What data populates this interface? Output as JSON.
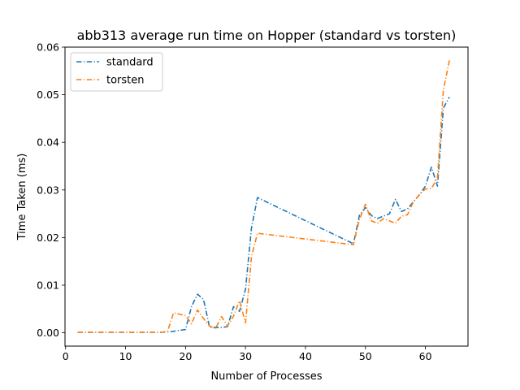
{
  "chart_data": {
    "type": "line",
    "title": "abb313 average run time on Hopper (standard vs torsten)",
    "xlabel": "Number of Processes",
    "ylabel": "Time Taken (ms)",
    "xlim": [
      -0.1,
      67.1
    ],
    "ylim": [
      -0.0028,
      0.06
    ],
    "xticks": [
      0,
      10,
      20,
      30,
      40,
      50,
      60
    ],
    "yticks": [
      0.0,
      0.01,
      0.02,
      0.03,
      0.04,
      0.05,
      0.06
    ],
    "ytick_labels": [
      "0.00",
      "0.01",
      "0.02",
      "0.03",
      "0.04",
      "0.05",
      "0.06"
    ],
    "grid": false,
    "legend_position": "upper-left",
    "series": [
      {
        "name": "standard",
        "color": "#1f77b4",
        "x": [
          2,
          4,
          8,
          16,
          18,
          20,
          21,
          22,
          23,
          24,
          25,
          26,
          27,
          28,
          29,
          30,
          31,
          32,
          48,
          49,
          50,
          51,
          52,
          53,
          54,
          55,
          56,
          57,
          58,
          59,
          60,
          61,
          62,
          63,
          64
        ],
        "y": [
          0.0001,
          0.0001,
          0.0001,
          0.0001,
          0.0003,
          0.0007,
          0.0055,
          0.0081,
          0.007,
          0.0012,
          0.0011,
          0.0011,
          0.0013,
          0.0055,
          0.0045,
          0.0092,
          0.022,
          0.0284,
          0.0187,
          0.0247,
          0.0263,
          0.0246,
          0.024,
          0.0245,
          0.025,
          0.028,
          0.0255,
          0.026,
          0.0275,
          0.029,
          0.0308,
          0.0348,
          0.0308,
          0.0472,
          0.0495
        ]
      },
      {
        "name": "torsten",
        "color": "#ff7f0e",
        "x": [
          2,
          4,
          8,
          16,
          17,
          18,
          20,
          21,
          22,
          23,
          24,
          25,
          26,
          27,
          28,
          29,
          30,
          31,
          32,
          48,
          49,
          50,
          51,
          52,
          53,
          54,
          55,
          56,
          57,
          58,
          59,
          60,
          61,
          62,
          63,
          64
        ],
        "y": [
          0.0001,
          0.0001,
          0.0001,
          0.0001,
          0.0003,
          0.0042,
          0.0036,
          0.0019,
          0.0048,
          0.003,
          0.0014,
          0.0009,
          0.0034,
          0.0014,
          0.0035,
          0.0067,
          0.0021,
          0.016,
          0.0209,
          0.0185,
          0.0238,
          0.027,
          0.0235,
          0.023,
          0.024,
          0.0235,
          0.023,
          0.0245,
          0.0248,
          0.0275,
          0.029,
          0.0302,
          0.0303,
          0.0325,
          0.051,
          0.0572
        ]
      }
    ]
  }
}
